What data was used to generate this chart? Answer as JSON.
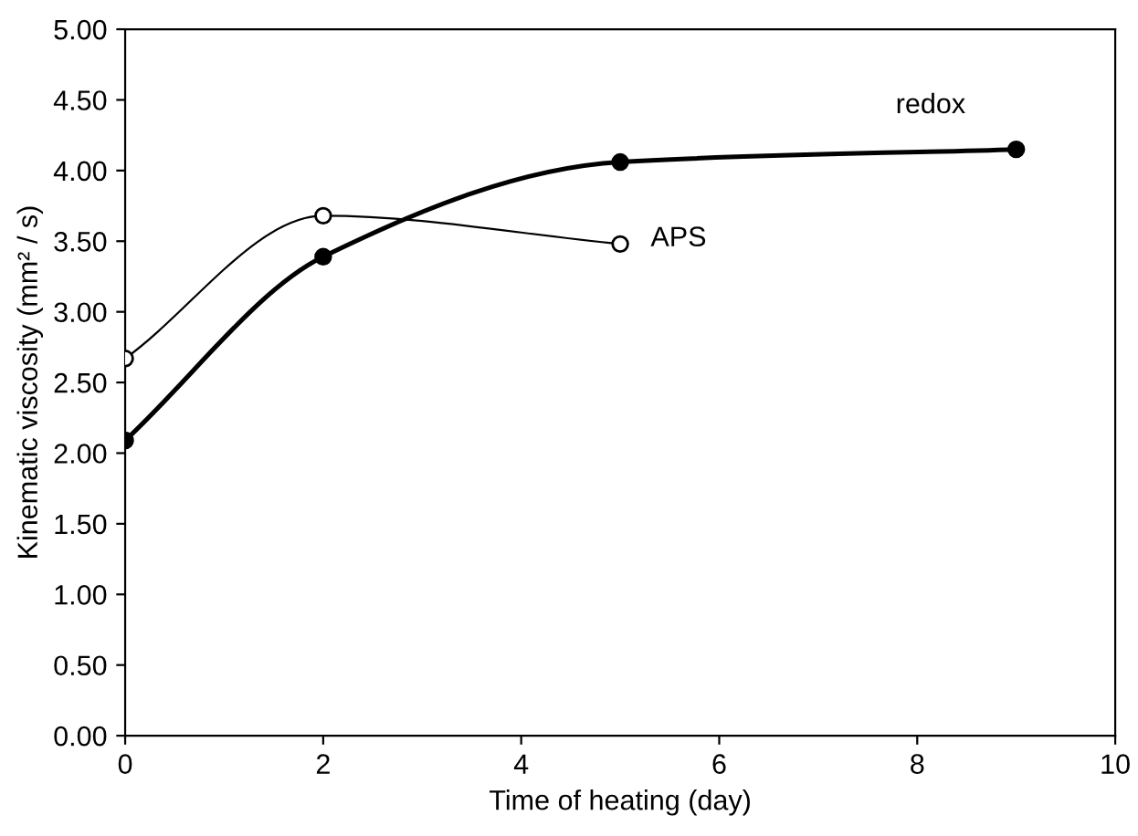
{
  "chart_data": {
    "type": "line",
    "xlabel": "Time of heating (day)",
    "ylabel": "Kinematic viscosity (mm² / s)",
    "xlim": [
      0,
      10
    ],
    "xticks": [
      0,
      2,
      4,
      6,
      8,
      10
    ],
    "ylim": [
      0,
      5
    ],
    "yticks": [
      {
        "value": 0,
        "label": "0.00"
      },
      {
        "value": 0.5,
        "label": "0.50"
      },
      {
        "value": 1,
        "label": "1.00"
      },
      {
        "value": 1.5,
        "label": "1.50"
      },
      {
        "value": 2,
        "label": "2.00"
      },
      {
        "value": 2.5,
        "label": "2.50"
      },
      {
        "value": 3,
        "label": "3.00"
      },
      {
        "value": 3.5,
        "label": "3.50"
      },
      {
        "value": 4,
        "label": "4.00"
      },
      {
        "value": 4.5,
        "label": "4.50"
      },
      {
        "value": 5,
        "label": "5.00"
      }
    ],
    "marker": "circle",
    "line_style": "solid",
    "grid": false,
    "legend": false,
    "series": [
      {
        "name": "redox",
        "color": "#000000",
        "x": [
          0,
          2,
          5,
          9
        ],
        "values": [
          2.09,
          3.39,
          4.06,
          4.15
        ]
      },
      {
        "name": "APS",
        "color": "#000000",
        "x": [
          0,
          2,
          5
        ],
        "values": [
          2.67,
          3.68,
          3.48
        ]
      }
    ]
  }
}
